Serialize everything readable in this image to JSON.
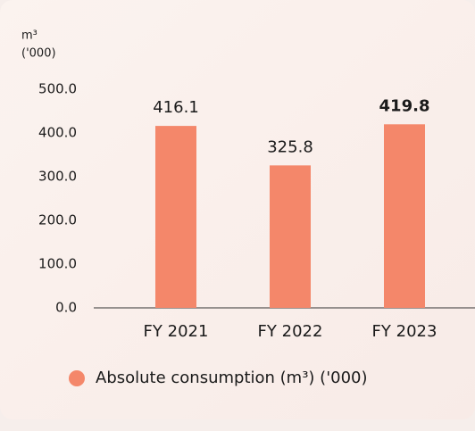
{
  "chart_data": {
    "type": "bar",
    "ylabel": [
      "m³",
      "('000)"
    ],
    "categories": [
      "FY 2021",
      "FY 2022",
      "FY 2023"
    ],
    "values": [
      416.1,
      325.8,
      419.8
    ],
    "color": "#f4876a",
    "highlight": "FY 2023",
    "ylim": [
      0,
      500
    ],
    "yticks": [
      {
        "value": 0,
        "label": "0.0"
      },
      {
        "value": 100,
        "label": "100.0"
      },
      {
        "value": 200,
        "label": "200.0"
      },
      {
        "value": 300,
        "label": "300.0"
      },
      {
        "value": 400,
        "label": "400.0"
      },
      {
        "value": 500,
        "label": "500.0"
      }
    ],
    "legend": "Absolute consumption (m³) ('000)"
  }
}
